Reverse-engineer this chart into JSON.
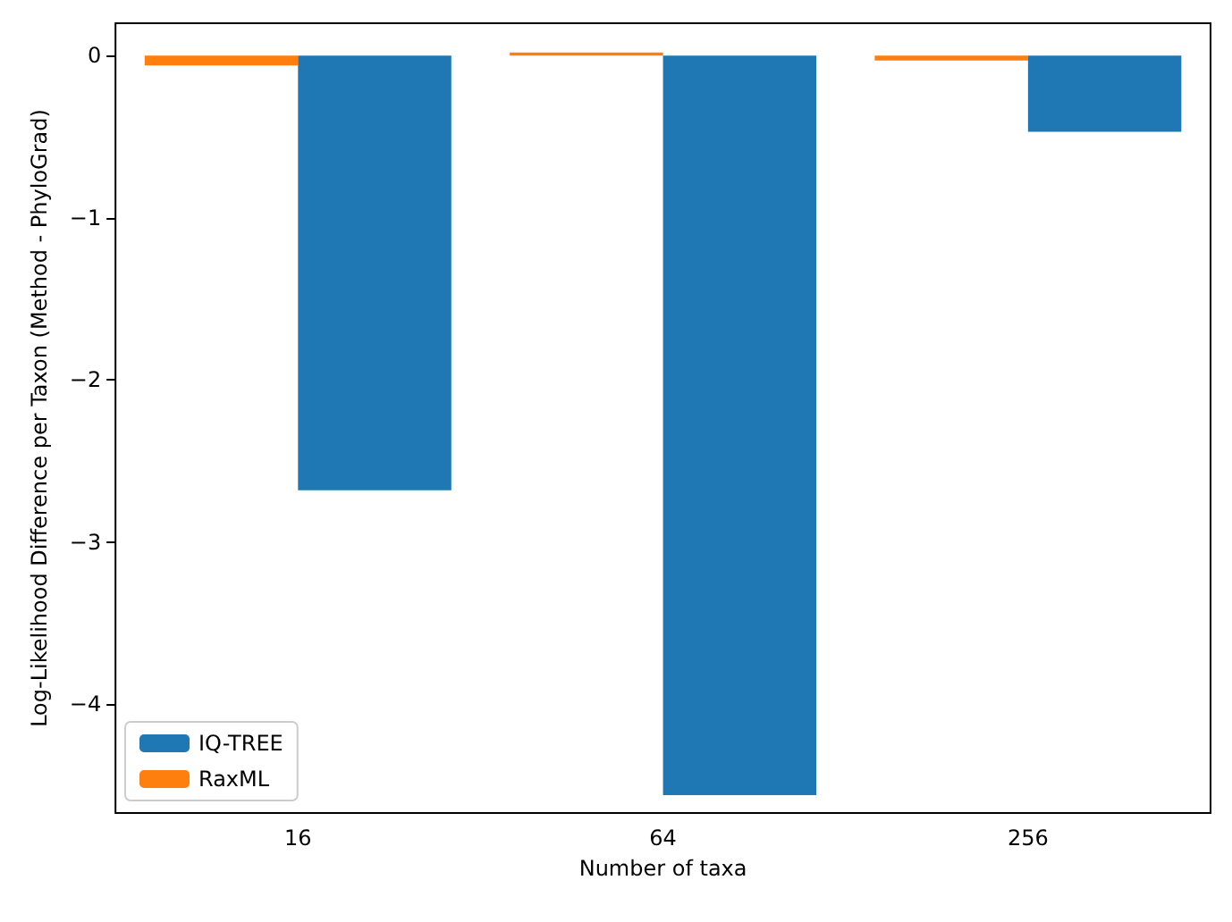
{
  "chart_data": {
    "type": "bar",
    "xlabel": "Number of taxa",
    "ylabel": "Log-Likelihood Difference per Taxon (Method - PhyloGrad)",
    "categories": [
      "16",
      "64",
      "256"
    ],
    "series": [
      {
        "name": "RaxML",
        "color": "#ff7f0e",
        "values": [
          -0.06,
          0.02,
          -0.03
        ]
      },
      {
        "name": "IQ-TREE",
        "color": "#1f77b4",
        "values": [
          -2.68,
          -4.56,
          -0.47
        ]
      }
    ],
    "ylim": [
      -4.67,
      0.2
    ],
    "yticks": [
      -4,
      -3,
      -2,
      -1,
      0
    ],
    "grid": false,
    "legend": "bottom left"
  }
}
